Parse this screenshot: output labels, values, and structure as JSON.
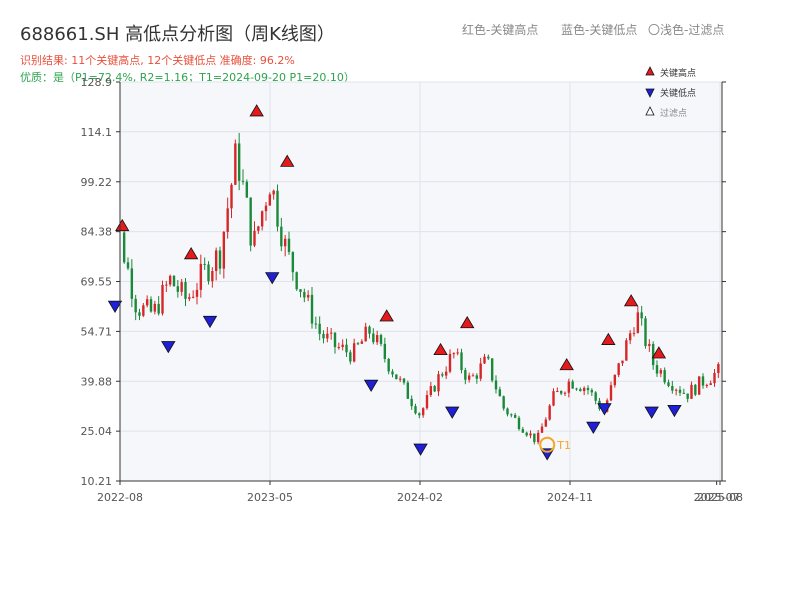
{
  "title": "688661.SH 高低点分析图（周K线图）",
  "legend_top": {
    "red": "红色-关键高点",
    "blue": "蓝色-关键低点",
    "light": "〇浅色-过滤点"
  },
  "subtitle_red": "识别结果: 11个关键高点, 12个关键低点  准确度: 96.2%",
  "subtitle_green": "优质：是（P1=72.4%, R2=1.16；T1=2024-09-20 P1=20.10）",
  "colors": {
    "up": "#d62728",
    "down": "#1a8a3a",
    "high_marker": "#e41a1c",
    "low_marker": "#1f1fd6",
    "t1_marker": "#f5a623",
    "plot_bg": "#f5f7fb",
    "grid": "#dfe4ea"
  },
  "chart_data": {
    "type": "candlestick",
    "x_start": "2022-07",
    "x_end": "2025-08",
    "ylim": [
      10.21,
      128.9
    ],
    "y_ticks": [
      "10.21",
      "25.04",
      "39.88",
      "54.71",
      "69.55",
      "84.38",
      "99.22",
      "114.1",
      "128.9"
    ],
    "x_ticks": [
      "2022-08",
      "2023-05",
      "2024-02",
      "2024-11",
      "2025-07",
      "2025-08"
    ],
    "close_path": [
      [
        "2022-07",
        66
      ],
      [
        "2022-08",
        83
      ],
      [
        "2022-09",
        62
      ],
      [
        "2022-10",
        60
      ],
      [
        "2022-11",
        70
      ],
      [
        "2022-12",
        64
      ],
      [
        "2023-01",
        72
      ],
      [
        "2023-02",
        78
      ],
      [
        "2023-03",
        108
      ],
      [
        "2023-04",
        80
      ],
      [
        "2023-05",
        100
      ],
      [
        "2023-06",
        78
      ],
      [
        "2023-07",
        66
      ],
      [
        "2023-08",
        54
      ],
      [
        "2023-09",
        50
      ],
      [
        "2023-10",
        48
      ],
      [
        "2023-11",
        55
      ],
      [
        "2023-12",
        46
      ],
      [
        "2024-01",
        38
      ],
      [
        "2024-02",
        30
      ],
      [
        "2024-03",
        40
      ],
      [
        "2024-04",
        48
      ],
      [
        "2024-05",
        40
      ],
      [
        "2024-06",
        46
      ],
      [
        "2024-07",
        32
      ],
      [
        "2024-08",
        27
      ],
      [
        "2024-09",
        22
      ],
      [
        "2024-10",
        35
      ],
      [
        "2024-11",
        40
      ],
      [
        "2024-12",
        38
      ],
      [
        "2025-01",
        31
      ],
      [
        "2025-02",
        45
      ],
      [
        "2025-03",
        60
      ],
      [
        "2025-04",
        45
      ],
      [
        "2025-05",
        40
      ],
      [
        "2025-06",
        36
      ],
      [
        "2025-07",
        40
      ],
      [
        "2025-08",
        43
      ]
    ],
    "key_highs": [
      {
        "date": "2022-08-05",
        "price": 84.38
      },
      {
        "date": "2022-12-09",
        "price": 76.0
      },
      {
        "date": "2023-04-07",
        "price": 118.5
      },
      {
        "date": "2023-06-02",
        "price": 103.5
      },
      {
        "date": "2023-12-01",
        "price": 57.5
      },
      {
        "date": "2024-03-08",
        "price": 47.5
      },
      {
        "date": "2024-04-26",
        "price": 55.5
      },
      {
        "date": "2024-10-25",
        "price": 43.0
      },
      {
        "date": "2025-01-10",
        "price": 50.5
      },
      {
        "date": "2025-02-21",
        "price": 62.0
      },
      {
        "date": "2025-04-11",
        "price": 46.5
      }
    ],
    "key_lows": [
      {
        "date": "2022-07-22",
        "price": 64.0
      },
      {
        "date": "2022-10-28",
        "price": 52.0
      },
      {
        "date": "2023-01-13",
        "price": 59.5
      },
      {
        "date": "2023-05-05",
        "price": 72.5
      },
      {
        "date": "2023-11-03",
        "price": 40.5
      },
      {
        "date": "2024-02-02",
        "price": 21.5
      },
      {
        "date": "2024-03-29",
        "price": 32.5
      },
      {
        "date": "2024-09-20",
        "price": 20.1
      },
      {
        "date": "2024-12-13",
        "price": 28.0
      },
      {
        "date": "2025-01-03",
        "price": 33.5
      },
      {
        "date": "2025-03-28",
        "price": 32.5
      },
      {
        "date": "2025-05-09",
        "price": 33.0
      }
    ],
    "t1": {
      "date": "2024-09-20",
      "price": 20.1,
      "label": "T1"
    },
    "legend": [
      {
        "label": "关键高点",
        "shape": "up-triangle",
        "color": "#e41a1c"
      },
      {
        "label": "关键低点",
        "shape": "down-triangle",
        "color": "#1f1fd6"
      },
      {
        "label": "过滤点",
        "shape": "up-triangle-outline",
        "color": "#ffffff"
      }
    ]
  }
}
